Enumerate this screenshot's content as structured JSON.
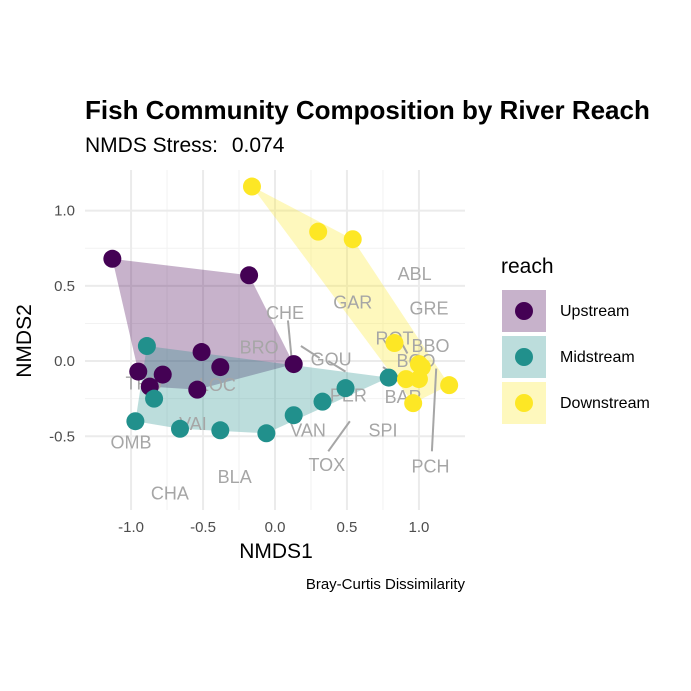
{
  "chart_data": {
    "type": "scatter",
    "title": "Fish Community Composition by River Reach",
    "subtitle_prefix": "NMDS Stress:",
    "stress": "0.074",
    "xlabel": "NMDS1",
    "ylabel": "NMDS2",
    "caption": "Bray-Curtis Dissimilarity",
    "xlim": [
      -1.32,
      1.32
    ],
    "ylim": [
      -0.99,
      1.27
    ],
    "x_ticks": [
      -1.0,
      -0.5,
      0.0,
      0.5,
      1.0
    ],
    "x_tick_labels": [
      "-1.0",
      "-0.5",
      "0.0",
      "0.5",
      "1.0"
    ],
    "y_ticks": [
      -0.5,
      0.0,
      0.5,
      1.0
    ],
    "y_tick_labels": [
      "-0.5",
      "0.0",
      "0.5",
      "1.0"
    ],
    "grid": true,
    "legend": {
      "title": "reach",
      "placement": "right",
      "entries": [
        {
          "label": "Upstream",
          "color": "#440154"
        },
        {
          "label": "Midstream",
          "color": "#21908C"
        },
        {
          "label": "Downstream",
          "color": "#FDE725"
        }
      ]
    },
    "series": [
      {
        "name": "Upstream",
        "color": "#440154",
        "points": [
          {
            "x": -1.13,
            "y": 0.68
          },
          {
            "x": -0.18,
            "y": 0.57
          },
          {
            "x": -0.51,
            "y": 0.06
          },
          {
            "x": -0.38,
            "y": -0.04
          },
          {
            "x": 0.13,
            "y": -0.02
          },
          {
            "x": -0.95,
            "y": -0.07
          },
          {
            "x": -0.78,
            "y": -0.09
          },
          {
            "x": -0.87,
            "y": -0.17
          },
          {
            "x": -0.54,
            "y": -0.19
          }
        ]
      },
      {
        "name": "Midstream",
        "color": "#21908C",
        "points": [
          {
            "x": -0.89,
            "y": 0.1
          },
          {
            "x": -0.97,
            "y": -0.4
          },
          {
            "x": -0.84,
            "y": -0.25
          },
          {
            "x": -0.66,
            "y": -0.45
          },
          {
            "x": -0.38,
            "y": -0.46
          },
          {
            "x": -0.06,
            "y": -0.48
          },
          {
            "x": 0.13,
            "y": -0.36
          },
          {
            "x": 0.33,
            "y": -0.27
          },
          {
            "x": 0.49,
            "y": -0.18
          },
          {
            "x": 0.79,
            "y": -0.11
          }
        ]
      },
      {
        "name": "Downstream",
        "color": "#FDE725",
        "points": [
          {
            "x": -0.16,
            "y": 1.16
          },
          {
            "x": 0.3,
            "y": 0.86
          },
          {
            "x": 0.54,
            "y": 0.81
          },
          {
            "x": 0.83,
            "y": 0.12
          },
          {
            "x": 1.0,
            "y": -0.02
          },
          {
            "x": 1.02,
            "y": -0.04
          },
          {
            "x": 0.91,
            "y": -0.12
          },
          {
            "x": 1.0,
            "y": -0.12
          },
          {
            "x": 1.21,
            "y": -0.16
          },
          {
            "x": 0.96,
            "y": -0.28
          }
        ]
      }
    ],
    "species": [
      {
        "label": "ABL",
        "x": 0.97,
        "y": 0.58
      },
      {
        "label": "GRE",
        "x": 1.07,
        "y": 0.35
      },
      {
        "label": "GAR",
        "x": 0.54,
        "y": 0.39
      },
      {
        "label": "CHE",
        "x": 0.07,
        "y": 0.32
      },
      {
        "label": "ROT",
        "x": 0.83,
        "y": 0.15
      },
      {
        "label": "BBO",
        "x": 1.08,
        "y": 0.1
      },
      {
        "label": "BRO",
        "x": -0.11,
        "y": 0.09
      },
      {
        "label": "GOU",
        "x": 0.39,
        "y": 0.01
      },
      {
        "label": "BCO",
        "x": 0.98,
        "y": 0.0
      },
      {
        "label": "TRU",
        "x": -0.91,
        "y": -0.15
      },
      {
        "label": "LOC",
        "x": -0.4,
        "y": -0.16
      },
      {
        "label": "PER",
        "x": 0.51,
        "y": -0.23
      },
      {
        "label": "BAR",
        "x": 0.89,
        "y": -0.24
      },
      {
        "label": "VAI",
        "x": -0.57,
        "y": -0.42
      },
      {
        "label": "VAN",
        "x": 0.23,
        "y": -0.46
      },
      {
        "label": "SPI",
        "x": 0.75,
        "y": -0.46
      },
      {
        "label": "OMB",
        "x": -1.0,
        "y": -0.54
      },
      {
        "label": "TOX",
        "x": 0.36,
        "y": -0.69
      },
      {
        "label": "PCH",
        "x": 1.08,
        "y": -0.7
      },
      {
        "label": "BLA",
        "x": -0.28,
        "y": -0.77
      },
      {
        "label": "CHA",
        "x": -0.73,
        "y": -0.88
      }
    ],
    "leader_lines": [
      {
        "from": [
          0.09,
          0.27
        ],
        "to": [
          0.12,
          -0.03
        ]
      },
      {
        "from": [
          0.18,
          0.1
        ],
        "to": [
          0.31,
          0.02
        ]
      },
      {
        "from": [
          0.37,
          0.0
        ],
        "to": [
          0.49,
          -0.07
        ]
      },
      {
        "from": [
          0.75,
          -0.04
        ],
        "to": [
          0.85,
          -0.1
        ]
      },
      {
        "from": [
          0.52,
          -0.4
        ],
        "to": [
          0.37,
          -0.6
        ]
      },
      {
        "from": [
          1.12,
          -0.05
        ],
        "to": [
          1.09,
          -0.6
        ]
      },
      {
        "from": [
          0.88,
          0.12
        ],
        "to": [
          0.92,
          0.05
        ]
      }
    ]
  }
}
